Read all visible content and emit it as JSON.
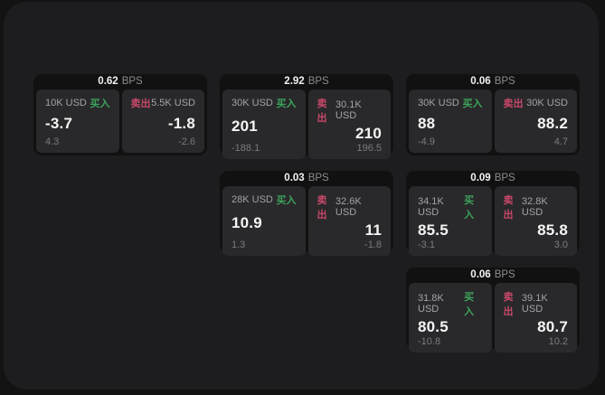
{
  "labels": {
    "buy": "买入",
    "sell": "卖出",
    "bps": "BPS"
  },
  "colors": {
    "page_bg": "#131314",
    "panel_bg": "#1d1d1f",
    "card_bg": "#111112",
    "tile_bg": "#29292b",
    "buy_accent": "#3da35b",
    "sell_accent": "#c9486a",
    "value_text": "#f5f5f5",
    "muted_text": "#a3a3a5"
  },
  "cards": [
    {
      "bps": "0.62",
      "buy": {
        "amount": "10K USD",
        "value": "-3.7",
        "delta": "4.3"
      },
      "sell": {
        "amount": "5.5K USD",
        "value": "-1.8",
        "delta": "-2.6"
      }
    },
    {
      "bps": "2.92",
      "buy": {
        "amount": "30K USD",
        "value": "201",
        "delta": "-188.1"
      },
      "sell": {
        "amount": "30.1K USD",
        "value": "210",
        "delta": "196.5"
      }
    },
    {
      "bps": "0.06",
      "buy": {
        "amount": "30K USD",
        "value": "88",
        "delta": "-4.9"
      },
      "sell": {
        "amount": "30K USD",
        "value": "88.2",
        "delta": "4.7"
      }
    },
    {
      "bps": "0.03",
      "buy": {
        "amount": "28K USD",
        "value": "10.9",
        "delta": "1.3"
      },
      "sell": {
        "amount": "32.6K USD",
        "value": "11",
        "delta": "-1.8"
      }
    },
    {
      "bps": "0.09",
      "buy": {
        "amount": "34.1K USD",
        "value": "85.5",
        "delta": "-3.1"
      },
      "sell": {
        "amount": "32.8K USD",
        "value": "85.8",
        "delta": "3.0"
      }
    },
    {
      "bps": "0.06",
      "buy": {
        "amount": "31.8K USD",
        "value": "80.5",
        "delta": "-10.8"
      },
      "sell": {
        "amount": "39.1K USD",
        "value": "80.7",
        "delta": "10.2"
      }
    }
  ]
}
